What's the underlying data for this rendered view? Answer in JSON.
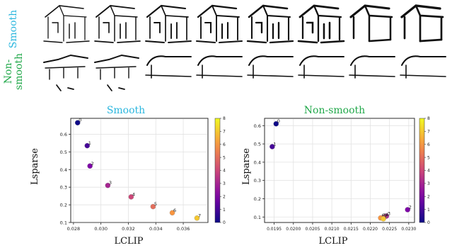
{
  "figure": {
    "row_labels": {
      "smooth": "Smooth",
      "nonsmooth_line1": "Non-",
      "nonsmooth_line2": "smooth"
    },
    "colors": {
      "smooth_label": "#2ab6de",
      "nonsmooth_label": "#21a84a",
      "sketch_stroke": "#111111"
    },
    "sketch_rows": {
      "columns": 8,
      "description_icons": [
        "house-sketch-icon"
      ]
    }
  },
  "chart_data": [
    {
      "type": "scatter",
      "title": "Smooth",
      "title_color": "#2ab6de",
      "xlabel": "LCLIP",
      "ylabel": "Lsparse",
      "xlim": [
        0.0278,
        0.0378
      ],
      "ylim": [
        0.1,
        0.69
      ],
      "xticks": [
        "0.028",
        "0.030",
        "0.032",
        "0.034",
        "0.036"
      ],
      "xtick_values": [
        0.028,
        0.03,
        0.032,
        0.034,
        0.036
      ],
      "yticks": [
        "0.1",
        "0.2",
        "0.3",
        "0.4",
        "0.5",
        "0.6"
      ],
      "ytick_values": [
        0.1,
        0.2,
        0.3,
        0.4,
        0.5,
        0.6
      ],
      "grid": true,
      "colorbar": {
        "min": 0,
        "max": 8,
        "ticks": [
          "0",
          "1",
          "2",
          "3",
          "4",
          "5",
          "6",
          "7",
          "8"
        ],
        "colormap": "plasma"
      },
      "points": [
        {
          "x": 0.0283,
          "y": 0.665,
          "label": "0",
          "c": 0
        },
        {
          "x": 0.029,
          "y": 0.535,
          "label": "1",
          "c": 1
        },
        {
          "x": 0.0292,
          "y": 0.42,
          "label": "2",
          "c": 2
        },
        {
          "x": 0.0305,
          "y": 0.31,
          "label": "3",
          "c": 3
        },
        {
          "x": 0.0322,
          "y": 0.245,
          "label": "4",
          "c": 4
        },
        {
          "x": 0.0338,
          "y": 0.19,
          "label": "5",
          "c": 5
        },
        {
          "x": 0.0352,
          "y": 0.155,
          "label": "6",
          "c": 6
        },
        {
          "x": 0.037,
          "y": 0.125,
          "label": "7",
          "c": 7
        }
      ]
    },
    {
      "type": "scatter",
      "title": "Non-smooth",
      "title_color": "#21a84a",
      "xlabel": "LCLIP",
      "ylabel": "Lsparse",
      "xlim": [
        0.01925,
        0.02315
      ],
      "ylim": [
        0.07,
        0.64
      ],
      "xticks": [
        "0.0195",
        "0.0200",
        "0.0205",
        "0.0210",
        "0.0215",
        "0.0220",
        "0.0225",
        "0.0230"
      ],
      "xtick_values": [
        0.0195,
        0.02,
        0.0205,
        0.021,
        0.0215,
        0.022,
        0.0225,
        0.023
      ],
      "yticks": [
        "0.1",
        "0.2",
        "0.3",
        "0.4",
        "0.5",
        "0.6"
      ],
      "ytick_values": [
        0.1,
        0.2,
        0.3,
        0.4,
        0.5,
        0.6
      ],
      "grid": true,
      "colorbar": {
        "min": 0,
        "max": 8,
        "ticks": [
          "0",
          "1",
          "2",
          "3",
          "4",
          "5",
          "6",
          "7",
          "8"
        ],
        "colormap": "plasma"
      },
      "points": [
        {
          "x": 0.01955,
          "y": 0.61,
          "label": "0",
          "c": 0
        },
        {
          "x": 0.01945,
          "y": 0.485,
          "label": "1",
          "c": 1
        },
        {
          "x": 0.02297,
          "y": 0.14,
          "label": "2",
          "c": 2
        },
        {
          "x": 0.02242,
          "y": 0.105,
          "label": "3",
          "c": 3
        },
        {
          "x": 0.02237,
          "y": 0.1,
          "label": "4",
          "c": 4
        },
        {
          "x": 0.02232,
          "y": 0.095,
          "label": "5",
          "c": 5
        },
        {
          "x": 0.02227,
          "y": 0.095,
          "label": "6",
          "c": 6
        },
        {
          "x": 0.02234,
          "y": 0.09,
          "label": "7",
          "c": 7
        }
      ]
    }
  ]
}
